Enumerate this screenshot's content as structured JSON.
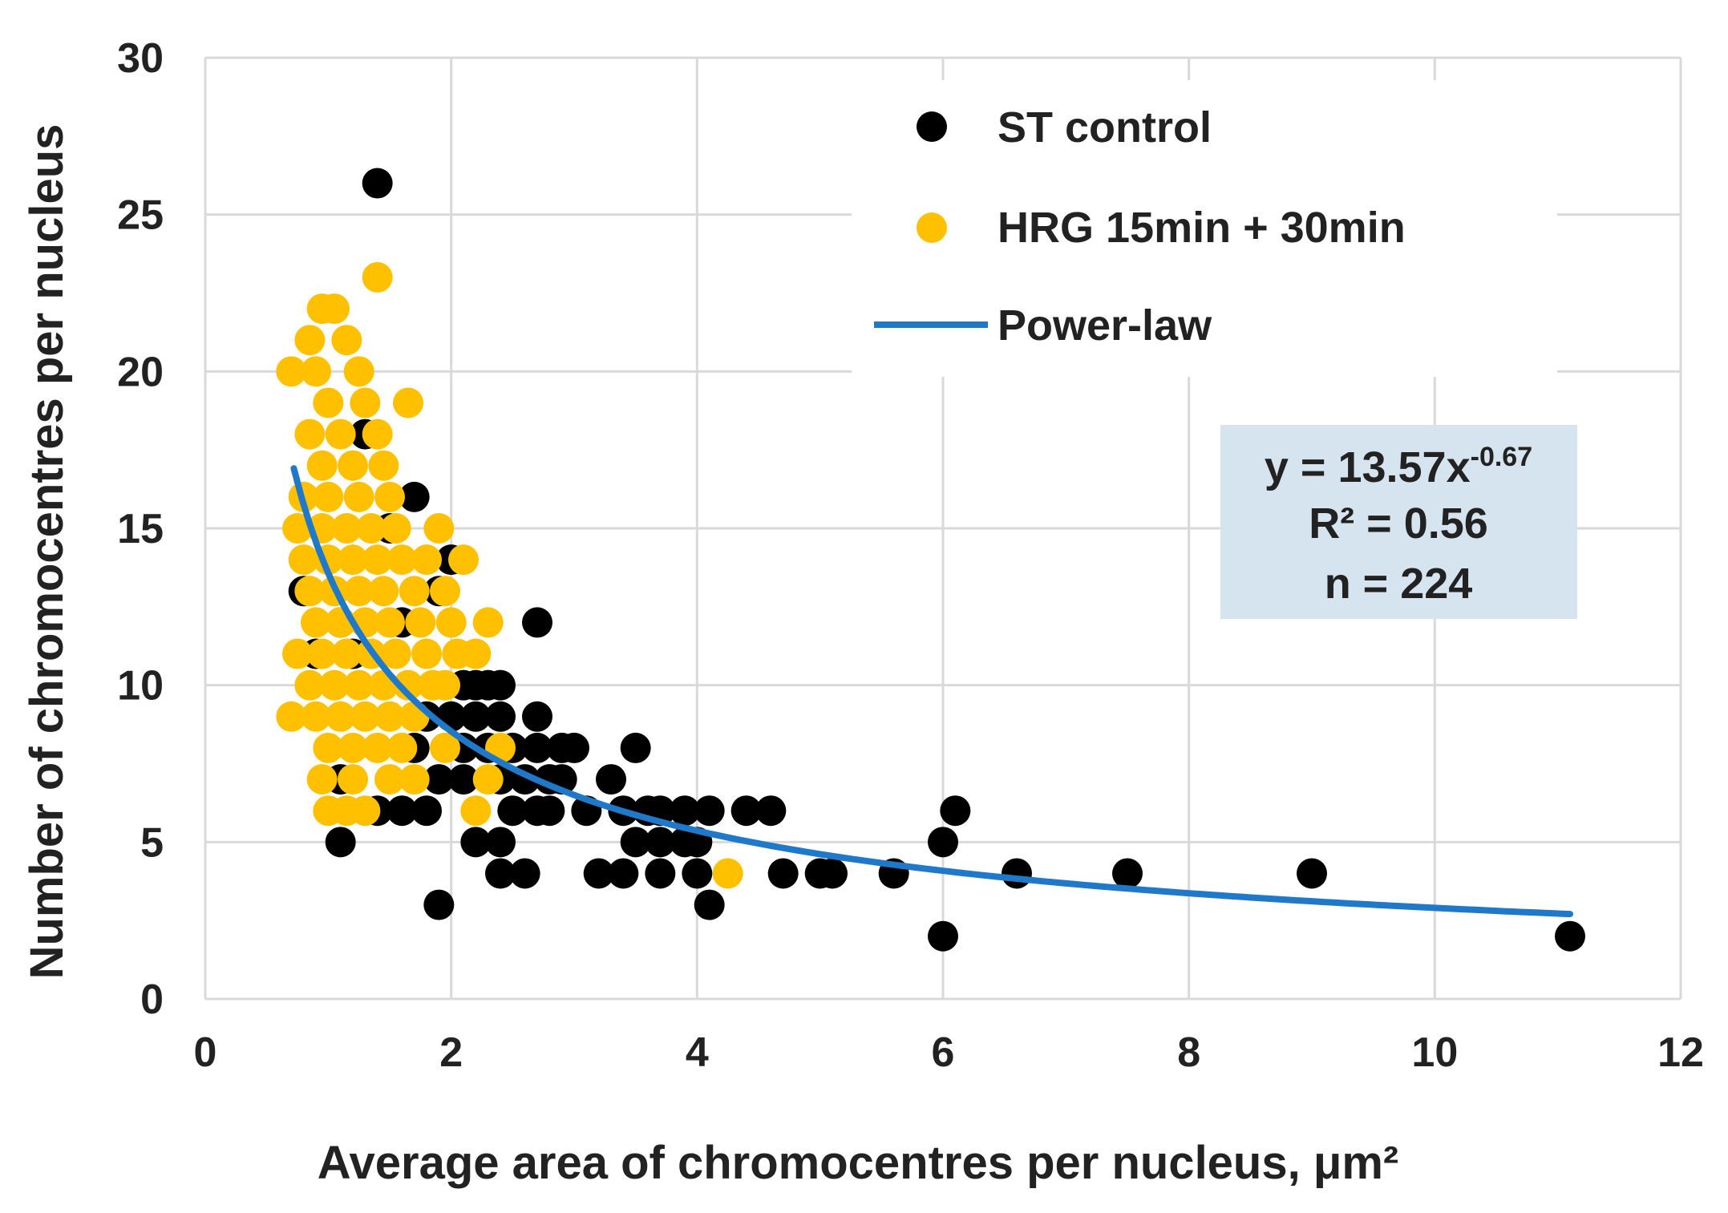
{
  "chart_data": {
    "type": "scatter",
    "title": "",
    "xlabel": "Average area  of chromocentres per nucleus, μm²",
    "ylabel": "Number of chromocentres per nucleus",
    "xlim": [
      0,
      12
    ],
    "ylim": [
      0,
      30
    ],
    "xticks": [
      "0",
      "2",
      "4",
      "6",
      "8",
      "10",
      "12"
    ],
    "yticks": [
      "0",
      "5",
      "10",
      "15",
      "20",
      "25",
      "30"
    ],
    "grid": true,
    "legend_position": "top-right",
    "colors": {
      "st_control": "#000000",
      "hrg": "#FFC000",
      "fit": "#1F78C8",
      "annotation_box": "#D6E4F0",
      "grid": "#D9D9D9"
    },
    "series": [
      {
        "name": "ST control",
        "marker": "circle",
        "points": [
          [
            1.4,
            26
          ],
          [
            1.7,
            16
          ],
          [
            1.3,
            18
          ],
          [
            2.7,
            12
          ],
          [
            0.8,
            13
          ],
          [
            1.9,
            13
          ],
          [
            2.0,
            14
          ],
          [
            1.5,
            15
          ],
          [
            1.1,
            12
          ],
          [
            0.9,
            11
          ],
          [
            1.6,
            12
          ],
          [
            1.2,
            11
          ],
          [
            2.1,
            10
          ],
          [
            2.2,
            10
          ],
          [
            2.3,
            10
          ],
          [
            2.4,
            10
          ],
          [
            1.8,
            9
          ],
          [
            2.0,
            9
          ],
          [
            2.2,
            9
          ],
          [
            2.4,
            9
          ],
          [
            2.7,
            9
          ],
          [
            2.1,
            8
          ],
          [
            2.3,
            8
          ],
          [
            2.5,
            8
          ],
          [
            2.7,
            8
          ],
          [
            2.9,
            8
          ],
          [
            3.0,
            8
          ],
          [
            3.5,
            8
          ],
          [
            1.7,
            8
          ],
          [
            1.9,
            7
          ],
          [
            2.1,
            7
          ],
          [
            2.4,
            7
          ],
          [
            2.6,
            7
          ],
          [
            2.8,
            7
          ],
          [
            2.9,
            7
          ],
          [
            3.3,
            7
          ],
          [
            1.1,
            7
          ],
          [
            1.4,
            6
          ],
          [
            1.6,
            6
          ],
          [
            1.8,
            6
          ],
          [
            2.5,
            6
          ],
          [
            2.7,
            6
          ],
          [
            2.8,
            6
          ],
          [
            3.1,
            6
          ],
          [
            3.4,
            6
          ],
          [
            3.6,
            6
          ],
          [
            3.7,
            6
          ],
          [
            3.9,
            6
          ],
          [
            4.1,
            6
          ],
          [
            4.4,
            6
          ],
          [
            4.6,
            6
          ],
          [
            6.1,
            6
          ],
          [
            2.2,
            5
          ],
          [
            2.4,
            5
          ],
          [
            3.5,
            5
          ],
          [
            3.7,
            5
          ],
          [
            3.9,
            5
          ],
          [
            4.0,
            5
          ],
          [
            1.1,
            5
          ],
          [
            6.0,
            5
          ],
          [
            2.4,
            4
          ],
          [
            2.6,
            4
          ],
          [
            3.2,
            4
          ],
          [
            3.4,
            4
          ],
          [
            3.7,
            4
          ],
          [
            4.0,
            4
          ],
          [
            4.7,
            4
          ],
          [
            5.0,
            4
          ],
          [
            5.1,
            4
          ],
          [
            5.6,
            4
          ],
          [
            6.6,
            4
          ],
          [
            7.5,
            4
          ],
          [
            9.0,
            4
          ],
          [
            1.9,
            3
          ],
          [
            4.1,
            3
          ],
          [
            6.0,
            2
          ],
          [
            11.1,
            2
          ]
        ]
      },
      {
        "name": "HRG 15min + 30min",
        "marker": "circle",
        "points": [
          [
            1.4,
            23
          ],
          [
            0.95,
            22
          ],
          [
            1.05,
            22
          ],
          [
            0.85,
            21
          ],
          [
            1.15,
            21
          ],
          [
            0.7,
            20
          ],
          [
            0.9,
            20
          ],
          [
            1.25,
            20
          ],
          [
            1.0,
            19
          ],
          [
            1.3,
            19
          ],
          [
            1.65,
            19
          ],
          [
            0.85,
            18
          ],
          [
            1.1,
            18
          ],
          [
            1.4,
            18
          ],
          [
            0.95,
            17
          ],
          [
            1.2,
            17
          ],
          [
            1.45,
            17
          ],
          [
            0.8,
            16
          ],
          [
            1.0,
            16
          ],
          [
            1.25,
            16
          ],
          [
            1.5,
            16
          ],
          [
            0.75,
            15
          ],
          [
            0.95,
            15
          ],
          [
            1.15,
            15
          ],
          [
            1.35,
            15
          ],
          [
            1.55,
            15
          ],
          [
            1.9,
            15
          ],
          [
            0.8,
            14
          ],
          [
            1.0,
            14
          ],
          [
            1.2,
            14
          ],
          [
            1.4,
            14
          ],
          [
            1.6,
            14
          ],
          [
            1.8,
            14
          ],
          [
            2.1,
            14
          ],
          [
            0.85,
            13
          ],
          [
            1.05,
            13
          ],
          [
            1.25,
            13
          ],
          [
            1.45,
            13
          ],
          [
            1.7,
            13
          ],
          [
            1.95,
            13
          ],
          [
            0.9,
            12
          ],
          [
            1.1,
            12
          ],
          [
            1.3,
            12
          ],
          [
            1.5,
            12
          ],
          [
            1.75,
            12
          ],
          [
            2.0,
            12
          ],
          [
            2.3,
            12
          ],
          [
            0.75,
            11
          ],
          [
            0.95,
            11
          ],
          [
            1.15,
            11
          ],
          [
            1.35,
            11
          ],
          [
            1.55,
            11
          ],
          [
            1.8,
            11
          ],
          [
            2.05,
            11
          ],
          [
            2.2,
            11
          ],
          [
            0.85,
            10
          ],
          [
            1.05,
            10
          ],
          [
            1.25,
            10
          ],
          [
            1.45,
            10
          ],
          [
            1.65,
            10
          ],
          [
            1.85,
            10
          ],
          [
            1.95,
            10
          ],
          [
            0.7,
            9
          ],
          [
            0.9,
            9
          ],
          [
            1.1,
            9
          ],
          [
            1.3,
            9
          ],
          [
            1.5,
            9
          ],
          [
            1.7,
            9
          ],
          [
            1.0,
            8
          ],
          [
            1.2,
            8
          ],
          [
            1.4,
            8
          ],
          [
            1.6,
            8
          ],
          [
            1.95,
            8
          ],
          [
            2.4,
            8
          ],
          [
            0.95,
            7
          ],
          [
            1.2,
            7
          ],
          [
            1.5,
            7
          ],
          [
            1.7,
            7
          ],
          [
            2.3,
            7
          ],
          [
            1.0,
            6
          ],
          [
            1.15,
            6
          ],
          [
            1.3,
            6
          ],
          [
            2.2,
            6
          ],
          [
            4.25,
            4
          ]
        ]
      }
    ],
    "fit": {
      "name": "Power-law",
      "type": "power",
      "a": 13.57,
      "b": -0.67,
      "x_range": [
        0.72,
        11.1
      ]
    },
    "annotation": {
      "equation_prefix": "y = 13.57x",
      "equation_exponent": "-0.67",
      "r2": "R² = 0.56",
      "n": "n = 224"
    }
  }
}
